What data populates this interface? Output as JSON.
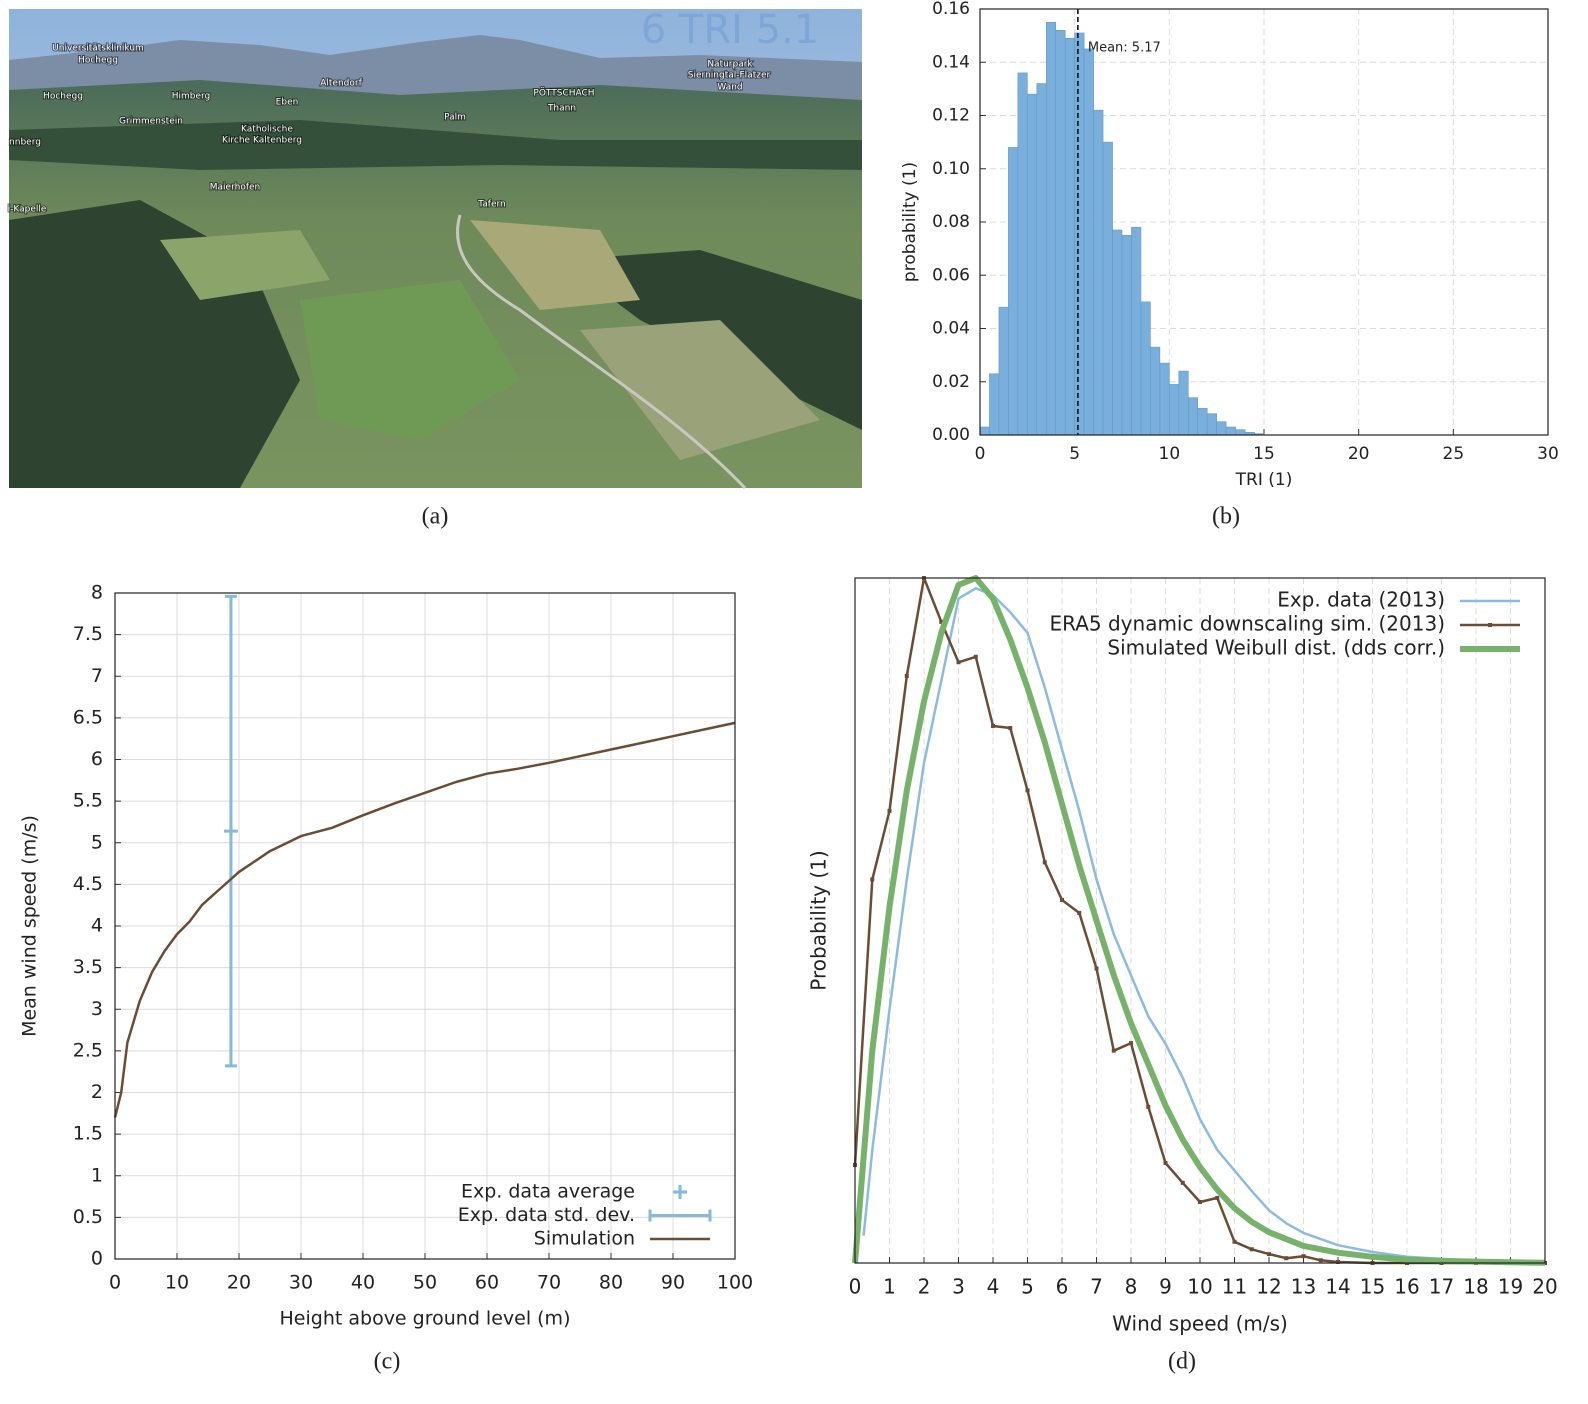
{
  "photo": {
    "caption": "(a)",
    "overlay_text": "6 TRI 5.1",
    "place_labels": [
      "Universitätsklinikum",
      "Hochegg",
      "Hochegg",
      "Himberg",
      "Eben",
      "Altendorf",
      "Grimmenstein",
      "Katholische",
      "Kirche Kaltenberg",
      "Palm",
      "PÖTTSCHACH",
      "Thann",
      "Naturpark",
      "Sierningtal-Flatzer",
      "Wand",
      "nnberg",
      "Maierhofen",
      "i-Kapelle",
      "Tafern"
    ]
  },
  "chart_data": [
    {
      "type": "histogram",
      "caption": "(b)",
      "x_label": "TRI (1)",
      "y_label": "probability (1)",
      "bins": [
        0,
        0.5,
        1,
        1.5,
        2,
        2.5,
        3,
        3.5,
        4,
        4.5,
        5,
        5.5,
        6,
        6.5,
        7,
        7.5,
        8,
        8.5,
        9,
        9.5,
        10,
        10.5,
        11,
        11.5,
        12,
        12.5,
        13,
        13.5,
        14,
        14.5,
        15
      ],
      "counts": [
        0.003,
        0.023,
        0.048,
        0.108,
        0.136,
        0.128,
        0.132,
        0.155,
        0.152,
        0.149,
        0.151,
        0.145,
        0.122,
        0.11,
        0.077,
        0.075,
        0.078,
        0.05,
        0.033,
        0.027,
        0.019,
        0.024,
        0.014,
        0.01,
        0.008,
        0.005,
        0.003,
        0.002,
        0.001,
        0.0005
      ],
      "color": "#7aafdb",
      "mean": 5.17,
      "mean_label": "Mean: 5.17",
      "xlim": [
        0,
        30
      ],
      "xticks": [
        0,
        5,
        10,
        15,
        20,
        25,
        30
      ],
      "ylim": [
        0,
        0.16
      ],
      "yticks": [
        {
          "value": 0,
          "label": "0.00"
        },
        0.02,
        0.04,
        0.06,
        0.08,
        {
          "value": 0.1,
          "label": "0.10"
        },
        0.12,
        0.14,
        0.16
      ],
      "grid": true,
      "grid_style": "dashed"
    },
    {
      "type": "line",
      "caption": "(c)",
      "x_label": "Height above ground level (m)",
      "y_label": "Mean wind speed (m/s)",
      "series": [
        {
          "name": "Exp. data average",
          "color": "#86b9de",
          "marker": "plus",
          "x": [
            18.7
          ],
          "values": [
            5.14
          ]
        },
        {
          "name": "Exp. data std. dev.",
          "color": "#86b9de",
          "x": [
            18.7
          ],
          "values": [
            5.14
          ],
          "error": [
            2.82
          ]
        },
        {
          "name": "Simulation",
          "color": "#6b4c34",
          "x": [
            0,
            1,
            2,
            4,
            6,
            8,
            10,
            12,
            14,
            17,
            20,
            25,
            30,
            35,
            40,
            45,
            50,
            55,
            60,
            65,
            70,
            75,
            80,
            85,
            90,
            95,
            100
          ],
          "values": [
            1.7,
            2.0,
            2.6,
            3.1,
            3.45,
            3.7,
            3.9,
            4.05,
            4.25,
            4.45,
            4.65,
            4.9,
            5.08,
            5.18,
            5.33,
            5.47,
            5.6,
            5.73,
            5.83,
            5.89,
            5.96,
            6.04,
            6.12,
            6.2,
            6.28,
            6.36,
            6.44
          ]
        }
      ],
      "xlim": [
        0,
        100
      ],
      "xticks": [
        0,
        10,
        20,
        30,
        40,
        50,
        60,
        70,
        80,
        90,
        100
      ],
      "ylim": [
        0,
        8
      ],
      "yticks": [
        0,
        0.5,
        1,
        1.5,
        2,
        2.5,
        3,
        3.5,
        4,
        4.5,
        5,
        5.5,
        6,
        6.5,
        7,
        7.5,
        8
      ],
      "grid": true,
      "grid_style": "solid",
      "legend": "lower right"
    },
    {
      "type": "line",
      "caption": "(d)",
      "x_label": "Wind speed (m/s)",
      "y_label": "Probability (1)",
      "series": [
        {
          "name": "Exp. data (2013)",
          "color": "#8dbbe0",
          "x": [
            0.25,
            0.5,
            1,
            1.5,
            2,
            2.5,
            3,
            3.5,
            4,
            4.5,
            5,
            5.5,
            6,
            6.5,
            7,
            7.5,
            8,
            8.5,
            9,
            9.5,
            10,
            10.5,
            11,
            11.5,
            12,
            12.5,
            13,
            14,
            15,
            16,
            17,
            18,
            19,
            20
          ],
          "values": [
            0.04,
            0.165,
            0.37,
            0.56,
            0.73,
            0.85,
            0.97,
            0.985,
            0.975,
            0.95,
            0.92,
            0.84,
            0.75,
            0.66,
            0.56,
            0.48,
            0.42,
            0.36,
            0.32,
            0.27,
            0.21,
            0.165,
            0.135,
            0.105,
            0.077,
            0.058,
            0.044,
            0.026,
            0.016,
            0.009,
            0.006,
            0.003,
            0.002,
            0.001
          ]
        },
        {
          "name": "ERA5 dynamic downscaling sim.  (2013)",
          "color": "#6b4c34",
          "marker": "square",
          "x": [
            0,
            0.5,
            1,
            1.5,
            2,
            2.5,
            3,
            3.5,
            4,
            4.5,
            5,
            5.5,
            6,
            6.5,
            7,
            7.5,
            8,
            8.5,
            9,
            9.5,
            10,
            10.5,
            11,
            11.5,
            12,
            12.5,
            13,
            13.5,
            14,
            15,
            16,
            17,
            18,
            19,
            20
          ],
          "values": [
            0.143,
            0.56,
            0.66,
            0.857,
            1.0,
            0.936,
            0.877,
            0.885,
            0.784,
            0.781,
            0.69,
            0.585,
            0.53,
            0.511,
            0.43,
            0.31,
            0.321,
            0.228,
            0.146,
            0.117,
            0.089,
            0.095,
            0.031,
            0.02,
            0.013,
            0.007,
            0.01,
            0.004,
            0.0015,
            0,
            0,
            0,
            0,
            0,
            0
          ]
        },
        {
          "name": "Simulated Weibull dist. (dds corr.)",
          "color": "#77b26a",
          "width": 6,
          "x": [
            0,
            0.5,
            1,
            1.5,
            2,
            2.5,
            3,
            3.5,
            4,
            4.5,
            5,
            5.5,
            6,
            6.5,
            7,
            7.5,
            8,
            8.5,
            9,
            9.5,
            10,
            10.5,
            11,
            11.5,
            12,
            13,
            14,
            15,
            16,
            17,
            18,
            19,
            20
          ],
          "values": [
            0,
            0.31,
            0.52,
            0.69,
            0.82,
            0.92,
            0.99,
            1.0,
            0.97,
            0.91,
            0.84,
            0.76,
            0.67,
            0.58,
            0.5,
            0.42,
            0.35,
            0.29,
            0.23,
            0.18,
            0.14,
            0.107,
            0.08,
            0.06,
            0.045,
            0.025,
            0.015,
            0.009,
            0.005,
            0.003,
            0.002,
            0.001,
            0.0005
          ]
        }
      ],
      "xlim": [
        0,
        20
      ],
      "xticks": [
        0,
        1,
        2,
        3,
        4,
        5,
        6,
        7,
        8,
        9,
        10,
        11,
        12,
        13,
        14,
        15,
        16,
        17,
        18,
        19,
        20
      ],
      "ylim": [
        0,
        1
      ],
      "grid": "x",
      "grid_style": "dashed",
      "legend": "upper right"
    }
  ]
}
